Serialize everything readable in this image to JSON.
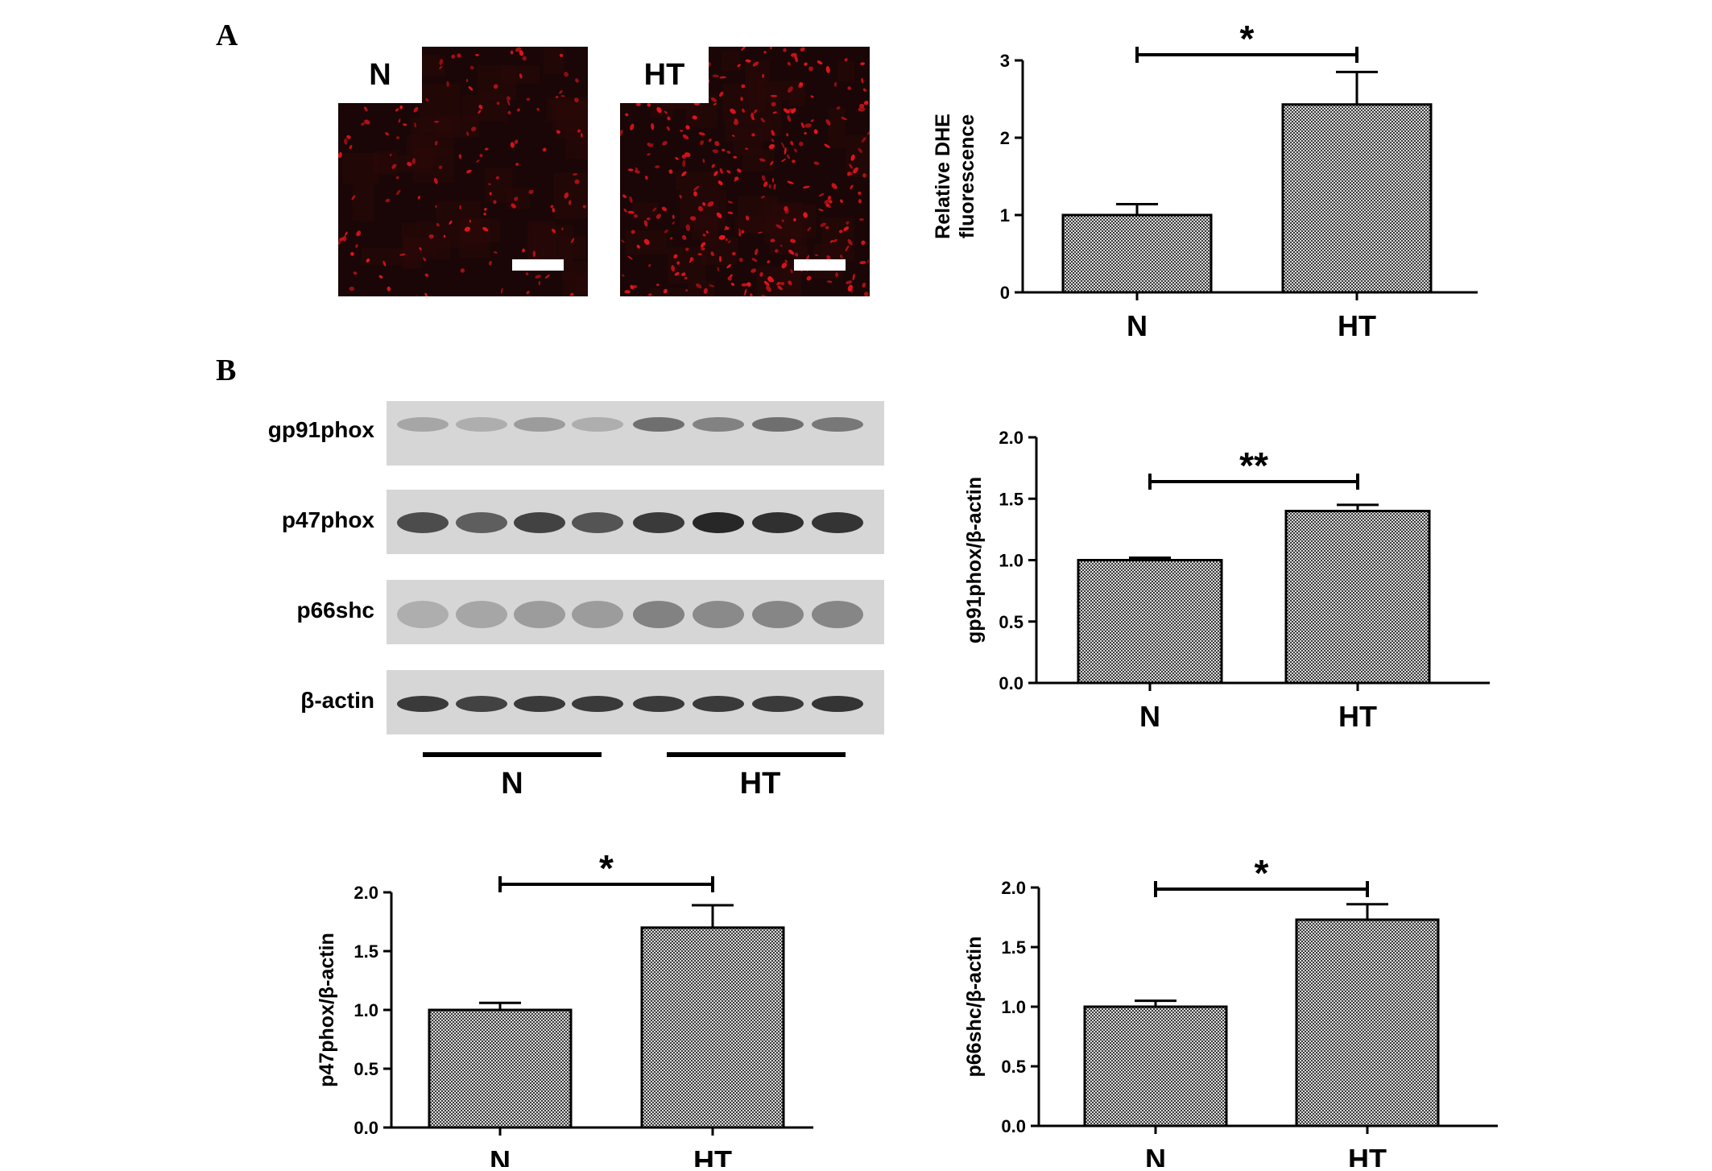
{
  "figure": {
    "panel_a_letter": "A",
    "panel_b_letter": "B"
  },
  "micrographs": [
    {
      "label": "N",
      "color": "#e8141c"
    },
    {
      "label": "HT",
      "color": "#e8141c"
    }
  ],
  "western_blot": {
    "bands": [
      "gp91phox",
      "p47phox",
      "p66shc",
      "β-actin"
    ],
    "groups": [
      "N",
      "HT"
    ]
  },
  "chart_data": [
    {
      "type": "bar",
      "categories": [
        "N",
        "HT"
      ],
      "values": [
        1.0,
        2.43
      ],
      "errors": [
        0.14,
        0.42
      ],
      "ylabel": "Relative DHE fluorescence",
      "ylabel_lines": [
        "Relative DHE",
        "fluorescence"
      ],
      "ylim": [
        0,
        3
      ],
      "yticks": [
        "0",
        "1",
        "2",
        "3"
      ],
      "significance": "*"
    },
    {
      "type": "bar",
      "categories": [
        "N",
        "HT"
      ],
      "values": [
        1.0,
        1.4
      ],
      "errors": [
        0.02,
        0.05
      ],
      "ylabel": "gp91phox/β-actin",
      "ylabel_lines": [
        "gp91phox/β-actin"
      ],
      "ylim": [
        0,
        2.0
      ],
      "yticks": [
        "0.0",
        "0.5",
        "1.0",
        "1.5",
        "2.0"
      ],
      "significance": "**"
    },
    {
      "type": "bar",
      "categories": [
        "N",
        "HT"
      ],
      "values": [
        1.0,
        1.7
      ],
      "errors": [
        0.06,
        0.19
      ],
      "ylabel": "p47phox/β-actin",
      "ylabel_lines": [
        "p47phox/β-actin"
      ],
      "ylim": [
        0,
        2.0
      ],
      "yticks": [
        "0.0",
        "0.5",
        "1.0",
        "1.5",
        "2.0"
      ],
      "significance": "*"
    },
    {
      "type": "bar",
      "categories": [
        "N",
        "HT"
      ],
      "values": [
        1.0,
        1.73
      ],
      "errors": [
        0.05,
        0.13
      ],
      "ylabel": "p66shc/β-actin",
      "ylabel_lines": [
        "p66shc/β-actin"
      ],
      "ylim": [
        0,
        2.0
      ],
      "yticks": [
        "0.0",
        "0.5",
        "1.0",
        "1.5",
        "2.0"
      ],
      "significance": "*"
    }
  ]
}
